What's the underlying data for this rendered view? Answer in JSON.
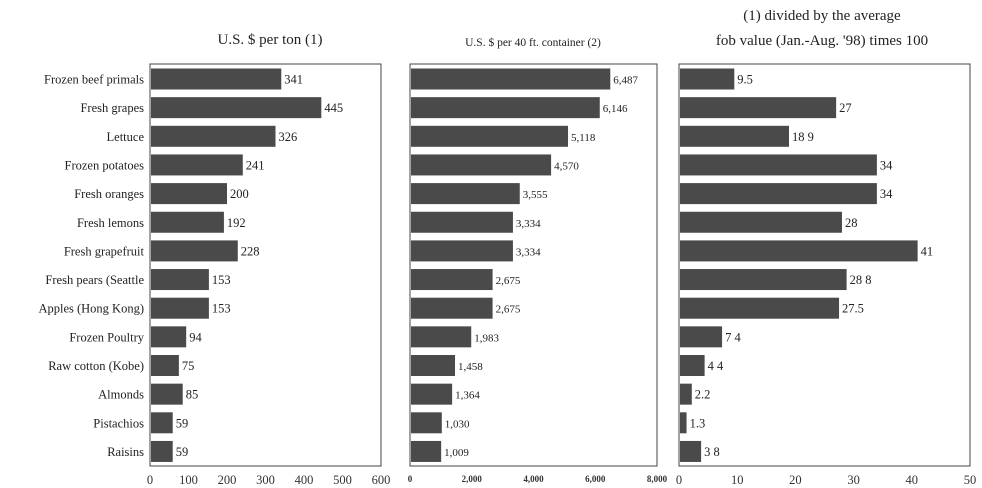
{
  "chart_data": {
    "type": "bar",
    "orientation": "horizontal",
    "categories": [
      "Frozen beef primals",
      "Fresh grapes",
      "Lettuce",
      "Frozen potatoes",
      "Fresh oranges",
      "Fresh lemons",
      "Fresh grapefruit",
      "Fresh pears (Seattle",
      "Apples (Hong Kong)",
      "Frozen Poultry",
      "Raw cotton (Kobe)",
      "Almonds",
      "Pistachios",
      "Raisins"
    ],
    "panels": [
      {
        "title_lines": [
          "U.S. $ per ton (1)"
        ],
        "values": [
          341,
          445,
          326,
          241,
          200,
          192,
          228,
          153,
          153,
          94,
          75,
          85,
          59,
          59
        ],
        "labels": [
          "341",
          "445",
          "326",
          "241",
          "200",
          "192",
          "228",
          "153",
          "153",
          "94",
          "75",
          "85",
          "59",
          "59"
        ],
        "xlim": [
          0,
          600
        ],
        "ticks": [
          0,
          100,
          200,
          300,
          400,
          500,
          600
        ],
        "tick_labels": [
          "0",
          "100",
          "200",
          "300",
          "400",
          "500",
          "600"
        ]
      },
      {
        "title_lines": [
          "U.S. $ per 40 ft. container (2)"
        ],
        "values": [
          6487,
          6146,
          5118,
          4570,
          3555,
          3334,
          3334,
          2675,
          2675,
          1983,
          1458,
          1364,
          1030,
          1009
        ],
        "labels": [
          "6,487",
          "6,146",
          "5,118",
          "4,570",
          "3,555",
          "3,334",
          "3,334",
          "2,675",
          "2,675",
          "1,983",
          "1,458",
          "1,364",
          "1,030",
          "1,009"
        ],
        "xlim": [
          0,
          8000
        ],
        "ticks": [
          0,
          2000,
          4000,
          6000,
          8000
        ],
        "tick_labels": [
          "0",
          "2,000",
          "4,000",
          "6,000",
          "8,000"
        ]
      },
      {
        "title_lines": [
          "(1) divided by the average",
          "fob value (Jan.-Aug. '98) times 100"
        ],
        "values": [
          9.5,
          27,
          18.9,
          34,
          34,
          28,
          41,
          28.8,
          27.5,
          7.4,
          4.4,
          2.2,
          1.3,
          3.8
        ],
        "labels": [
          "9.5",
          "27",
          "18 9",
          "34",
          "34",
          "28",
          "41",
          "28 8",
          "27.5",
          "7 4",
          "4 4",
          "2.2",
          "1.3",
          "3 8"
        ],
        "xlim": [
          0,
          50
        ],
        "ticks": [
          0,
          10,
          20,
          30,
          40,
          50
        ],
        "tick_labels": [
          "0",
          "10",
          "20",
          "30",
          "40",
          "50"
        ]
      }
    ],
    "bar_color": "#4a4a4a",
    "grid": false
  }
}
